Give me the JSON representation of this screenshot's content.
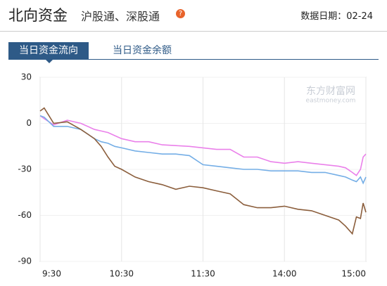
{
  "header": {
    "title": "北向资金",
    "subtitle": "沪股通、深股通",
    "date_label": "数据日期：02-24"
  },
  "tabs": [
    "当日资金流向",
    "当日资金余额"
  ],
  "chart_data": {
    "type": "line",
    "watermark": "东方财富网",
    "watermark_sub": "eastmoney.com",
    "x": [
      0,
      3,
      10,
      20,
      30,
      40,
      45,
      50,
      55,
      60,
      70,
      80,
      90,
      100,
      110,
      120,
      130,
      140,
      150,
      160,
      170,
      180,
      190,
      200,
      210,
      220,
      225,
      230,
      233,
      236,
      238,
      240
    ],
    "xlim": [
      0,
      240
    ],
    "xticks": [
      {
        "value": 0,
        "label": "9:30"
      },
      {
        "value": 60,
        "label": "10:30"
      },
      {
        "value": 120,
        "label": "11:30"
      },
      {
        "value": 180,
        "label": "14:00"
      },
      {
        "value": 240,
        "label": "15:00"
      }
    ],
    "ylim": [
      -90,
      30
    ],
    "yticks": [
      30,
      0,
      -30,
      -60,
      -90
    ],
    "grid": true,
    "series": [
      {
        "color": "#ea80ea",
        "values": [
          5,
          3,
          -1,
          2,
          0,
          -4,
          -5,
          -6,
          -8,
          -10,
          -12,
          -12,
          -14,
          -14.5,
          -15,
          -16,
          -17,
          -17,
          -22,
          -22,
          -25,
          -26,
          -25,
          -26,
          -27,
          -28,
          -29,
          -32,
          -34,
          -30,
          -22,
          -20
        ]
      },
      {
        "color": "#74aee6",
        "values": [
          5,
          4,
          -2,
          -2,
          -4,
          -10,
          -12,
          -13,
          -15,
          -16,
          -18,
          -19,
          -20,
          -20,
          -21,
          -27,
          -28,
          -29,
          -30,
          -30,
          -31,
          -31,
          -31,
          -32,
          -32,
          -34,
          -35,
          -37,
          -38,
          -35,
          -39,
          -35
        ]
      },
      {
        "color": "#8b5e3c",
        "values": [
          8,
          10,
          0,
          1,
          -4,
          -10,
          -15,
          -22,
          -28,
          -30,
          -35,
          -38,
          -40,
          -43,
          -41,
          -42,
          -44,
          -46,
          -53,
          -55,
          -55,
          -54,
          -56,
          -57,
          -60,
          -63,
          -67,
          -72,
          -61,
          -62,
          -52,
          -58
        ]
      }
    ]
  }
}
